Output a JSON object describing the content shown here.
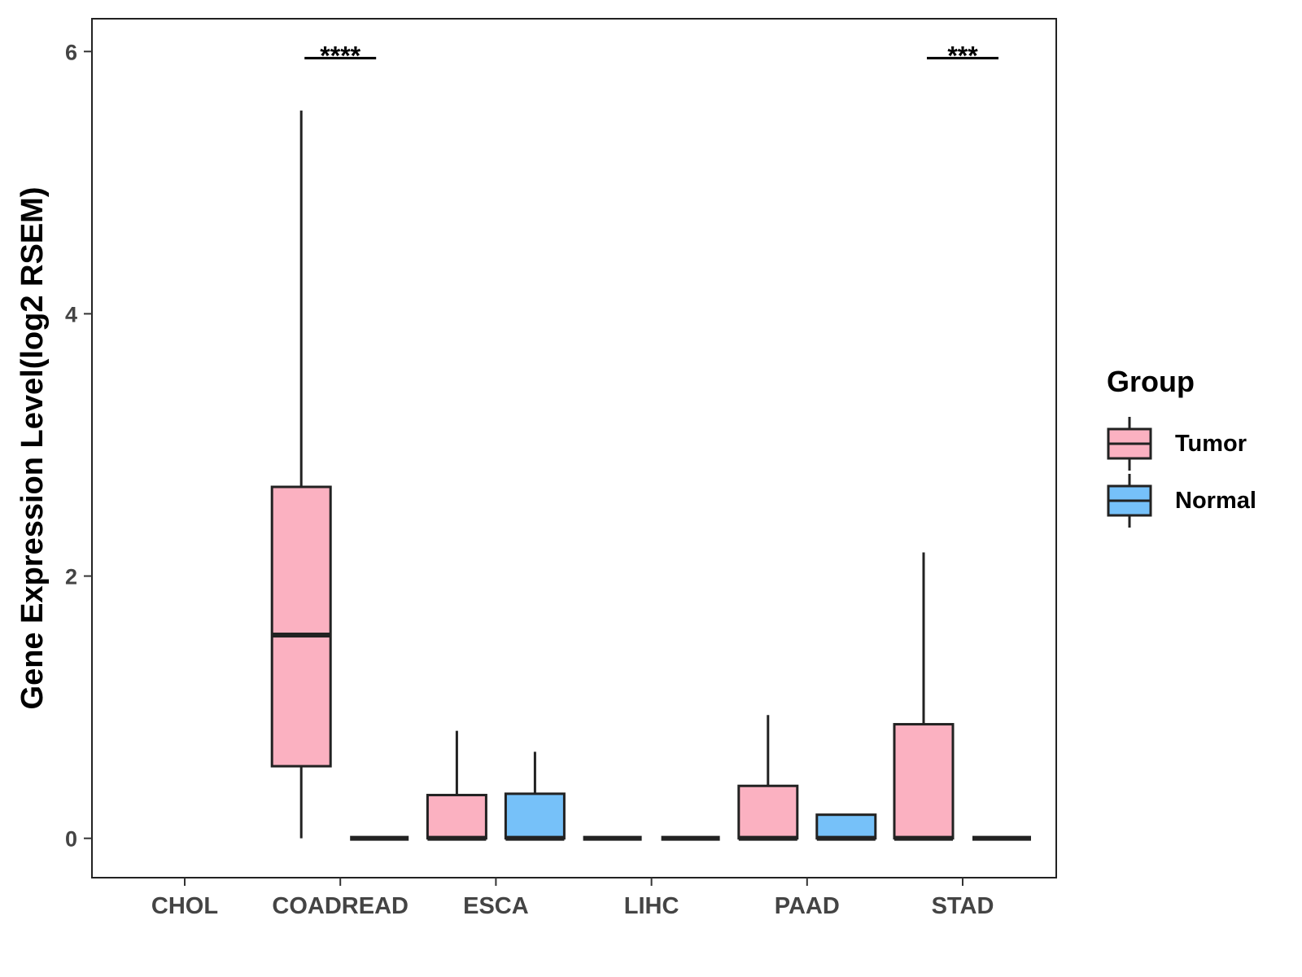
{
  "chart_data": {
    "type": "box",
    "title": "",
    "xlabel": "",
    "ylabel": "Gene Expression Level(log2 RSEM)",
    "ylim": [
      -0.3,
      6.25
    ],
    "yticks": [
      0,
      2,
      4,
      6
    ],
    "categories": [
      "CHOL",
      "COADREAD",
      "ESCA",
      "LIHC",
      "PAAD",
      "STAD"
    ],
    "legend": {
      "title": "Group",
      "position": "right"
    },
    "grid": false,
    "series": [
      {
        "name": "Tumor",
        "color": "#FBB1C1",
        "boxes": [
          null,
          {
            "min": 0.0,
            "q1": 0.55,
            "median": 1.55,
            "q3": 2.68,
            "max": 5.55
          },
          {
            "min": 0.0,
            "q1": 0.0,
            "median": 0.0,
            "q3": 0.33,
            "max": 0.82
          },
          {
            "min": 0.0,
            "q1": 0.0,
            "median": 0.0,
            "q3": 0.0,
            "max": 0.0
          },
          {
            "min": 0.0,
            "q1": 0.0,
            "median": 0.0,
            "q3": 0.4,
            "max": 0.94
          },
          {
            "min": 0.0,
            "q1": 0.0,
            "median": 0.0,
            "q3": 0.87,
            "max": 2.18
          }
        ]
      },
      {
        "name": "Normal",
        "color": "#76C1F9",
        "boxes": [
          null,
          {
            "min": 0.0,
            "q1": 0.0,
            "median": 0.0,
            "q3": 0.0,
            "max": 0.0
          },
          {
            "min": 0.0,
            "q1": 0.0,
            "median": 0.0,
            "q3": 0.34,
            "max": 0.66
          },
          {
            "min": 0.0,
            "q1": 0.0,
            "median": 0.0,
            "q3": 0.0,
            "max": 0.0
          },
          {
            "min": 0.0,
            "q1": 0.0,
            "median": 0.0,
            "q3": 0.18,
            "max": 0.18
          },
          {
            "min": 0.0,
            "q1": 0.0,
            "median": 0.0,
            "q3": 0.0,
            "max": 0.0
          }
        ]
      }
    ],
    "annotations": [
      {
        "category": "COADREAD",
        "text": "****",
        "y": 5.95
      },
      {
        "category": "STAD",
        "text": "***",
        "y": 5.95
      }
    ]
  }
}
